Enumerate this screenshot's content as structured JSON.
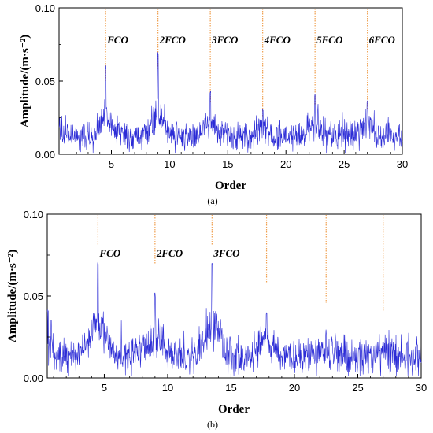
{
  "chart_data": [
    {
      "type": "line",
      "panel": "(a)",
      "xlabel": "Order",
      "ylabel": "Amplitude/(m·s⁻²)",
      "xlim": [
        0.5,
        30
      ],
      "ylim": [
        0,
        0.1
      ],
      "xticks": [
        5,
        10,
        15,
        20,
        25,
        30
      ],
      "yticks": [
        "0.00",
        "0.05",
        "0.10"
      ],
      "line_color": "#2b2bd6",
      "marker_color": "#f0a050",
      "baseline": 0.012,
      "noise": 0.006,
      "peaks": [
        {
          "x": 4.5,
          "y": 0.061,
          "label": "FCO"
        },
        {
          "x": 9.0,
          "y": 0.071,
          "label": "2FCO"
        },
        {
          "x": 13.5,
          "y": 0.044,
          "label": "3FCO"
        },
        {
          "x": 18.0,
          "y": 0.031,
          "label": "4FCO"
        },
        {
          "x": 22.5,
          "y": 0.041,
          "label": "5FCO"
        },
        {
          "x": 27.0,
          "y": 0.037,
          "label": "6FCO"
        }
      ],
      "markers": [
        4.5,
        9.0,
        13.5,
        18.0,
        22.5,
        27.0
      ],
      "caption": "(a)"
    },
    {
      "type": "line",
      "panel": "(b)",
      "xlabel": "Order",
      "ylabel": "Amplitude/(m·s⁻²)",
      "xlim": [
        0.5,
        30
      ],
      "ylim": [
        0,
        0.1
      ],
      "xticks": [
        5,
        10,
        15,
        20,
        25,
        30
      ],
      "yticks": [
        "0.00",
        "0.05",
        "0.10"
      ],
      "line_color": "#2b2bd6",
      "marker_color": "#f0a050",
      "baseline": 0.012,
      "noise": 0.008,
      "peaks": [
        {
          "x": 4.5,
          "y": 0.072,
          "label": "FCO"
        },
        {
          "x": 9.0,
          "y": 0.052,
          "label": "2FCO"
        },
        {
          "x": 13.5,
          "y": 0.071,
          "label": "3FCO"
        },
        {
          "x": 17.8,
          "y": 0.04,
          "label": ""
        },
        {
          "x": 22.5,
          "y": 0.027,
          "label": ""
        },
        {
          "x": 27.0,
          "y": 0.022,
          "label": ""
        }
      ],
      "markers": [
        4.5,
        9.0,
        13.5,
        17.8,
        22.5,
        27.0
      ],
      "caption": "(b)"
    }
  ]
}
